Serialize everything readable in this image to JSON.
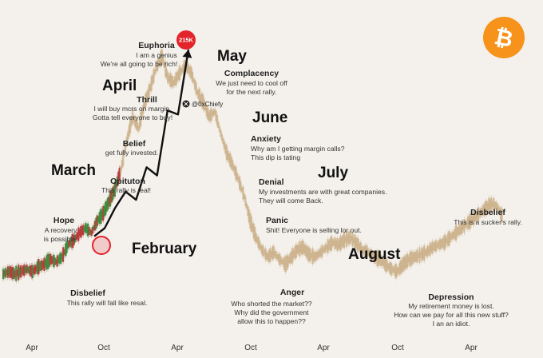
{
  "colors": {
    "background": "#f4f1ec",
    "price_up": "#3e8a3a",
    "price_down": "#b73a3a",
    "price_tan": "#c9ad86",
    "arrow": "#111111",
    "peak_marker": "#e3242b",
    "bitcoin_badge": "#f7931a"
  },
  "badge": {
    "symbol": "₿",
    "icon": "bitcoin-icon"
  },
  "watermark": {
    "handle": "@0xChiefy",
    "icon": "x-logo-icon"
  },
  "peak": {
    "label": "215K"
  },
  "months": [
    {
      "id": "march",
      "label": "March"
    },
    {
      "id": "april",
      "label": "April"
    },
    {
      "id": "may",
      "label": "May"
    },
    {
      "id": "june",
      "label": "June"
    },
    {
      "id": "july",
      "label": "July"
    },
    {
      "id": "february",
      "label": "February"
    },
    {
      "id": "august",
      "label": "August"
    }
  ],
  "stages": [
    {
      "id": "euphoria",
      "title": "Euphoria",
      "lines": [
        "I am a genius",
        "We're all going to be rich!"
      ]
    },
    {
      "id": "complacency",
      "title": "Complacency",
      "lines": [
        "We just need to cool off",
        "for the next rally."
      ]
    },
    {
      "id": "thrill",
      "title": "Thrill",
      "lines": [
        "I will buy mcrs on margin.",
        "Gotta tell everyone to buy!"
      ]
    },
    {
      "id": "belief",
      "title": "Belief",
      "lines": [
        "get fully invested."
      ]
    },
    {
      "id": "anxiety",
      "title": "Anxiety",
      "lines": [
        "Why am I getting margin calls?",
        "This dip is tating"
      ]
    },
    {
      "id": "optimism",
      "title": "Opituton",
      "lines": [
        "This rally is real!"
      ]
    },
    {
      "id": "denial",
      "title": "Denial",
      "lines": [
        "My investments are with great companies.",
        "They will come Back."
      ]
    },
    {
      "id": "panic",
      "title": "Panic",
      "lines": [
        "Shit! Everyone is selling lor out."
      ]
    },
    {
      "id": "hope",
      "title": "Hope",
      "lines": [
        "A recovery",
        "is possible."
      ]
    },
    {
      "id": "disbelief-early",
      "title": "Disbelief",
      "lines": [
        "This rally will fall like resal."
      ]
    },
    {
      "id": "anger",
      "title": "Anger",
      "lines": [
        "Who shorted the market??",
        "Why did the government",
        "allow this to happen??"
      ]
    },
    {
      "id": "depression",
      "title": "Depression",
      "lines": [
        "My retirement money is lost.",
        "How can we pay for all this new stuff?",
        "I an an idiot."
      ]
    },
    {
      "id": "disbelief-late",
      "title": "Disbelief",
      "lines": [
        "This is a sucker's rally."
      ]
    }
  ],
  "chart_data": {
    "type": "line",
    "title": "",
    "xlabel": "",
    "ylabel": "",
    "grid": false,
    "legend": "none",
    "x_tick_labels": [
      "Apr",
      "Oct",
      "Apr",
      "Oct",
      "Apr",
      "Oct",
      "Apr"
    ],
    "series": [
      {
        "values": [
          5,
          6,
          5,
          6,
          7,
          6,
          8,
          9,
          11,
          10,
          12,
          17,
          19,
          22,
          24,
          22,
          27,
          30,
          35,
          40,
          48,
          60,
          70,
          65,
          75,
          82,
          90,
          95,
          86,
          84,
          88,
          91,
          88,
          80,
          76,
          70,
          72,
          63,
          55,
          50,
          44,
          37,
          27,
          20,
          15,
          12,
          14,
          11,
          9,
          12,
          15,
          16,
          13,
          12,
          14,
          16,
          18,
          17,
          19,
          20,
          18,
          15,
          14,
          12,
          11,
          9,
          7,
          6,
          9,
          11,
          12,
          13,
          14,
          16,
          17,
          18,
          20,
          22,
          24,
          26,
          28,
          30,
          32,
          34,
          33,
          28
        ]
      }
    ],
    "path_of_sentiment": [
      8,
      12,
      22,
      30,
      26,
      42,
      38,
      70,
      68,
      100
    ]
  }
}
